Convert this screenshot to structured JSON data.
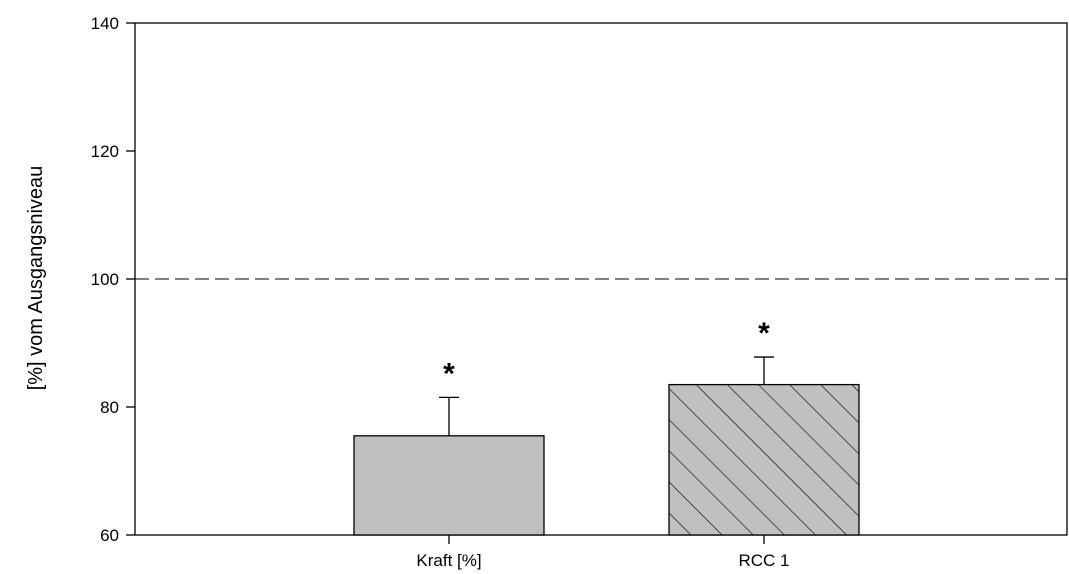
{
  "chart_data": {
    "type": "bar",
    "title": "",
    "xlabel": "",
    "ylabel": "[%] vom Ausgangsniveau",
    "ylim": [
      60,
      140
    ],
    "yticks": [
      60,
      80,
      100,
      120,
      140
    ],
    "grid": false,
    "categories": [
      "Kraft [%]",
      "RCC 1"
    ],
    "values": [
      75.5,
      83.5
    ],
    "errors": [
      6.0,
      4.3
    ],
    "annotations": [
      "*",
      "*"
    ],
    "bar_fills": [
      "#c0c0c0",
      "#c0c0c0"
    ],
    "bar_patterns": [
      "solid",
      "hatch"
    ],
    "reference_line": {
      "value": 100,
      "style": "dashed"
    }
  }
}
